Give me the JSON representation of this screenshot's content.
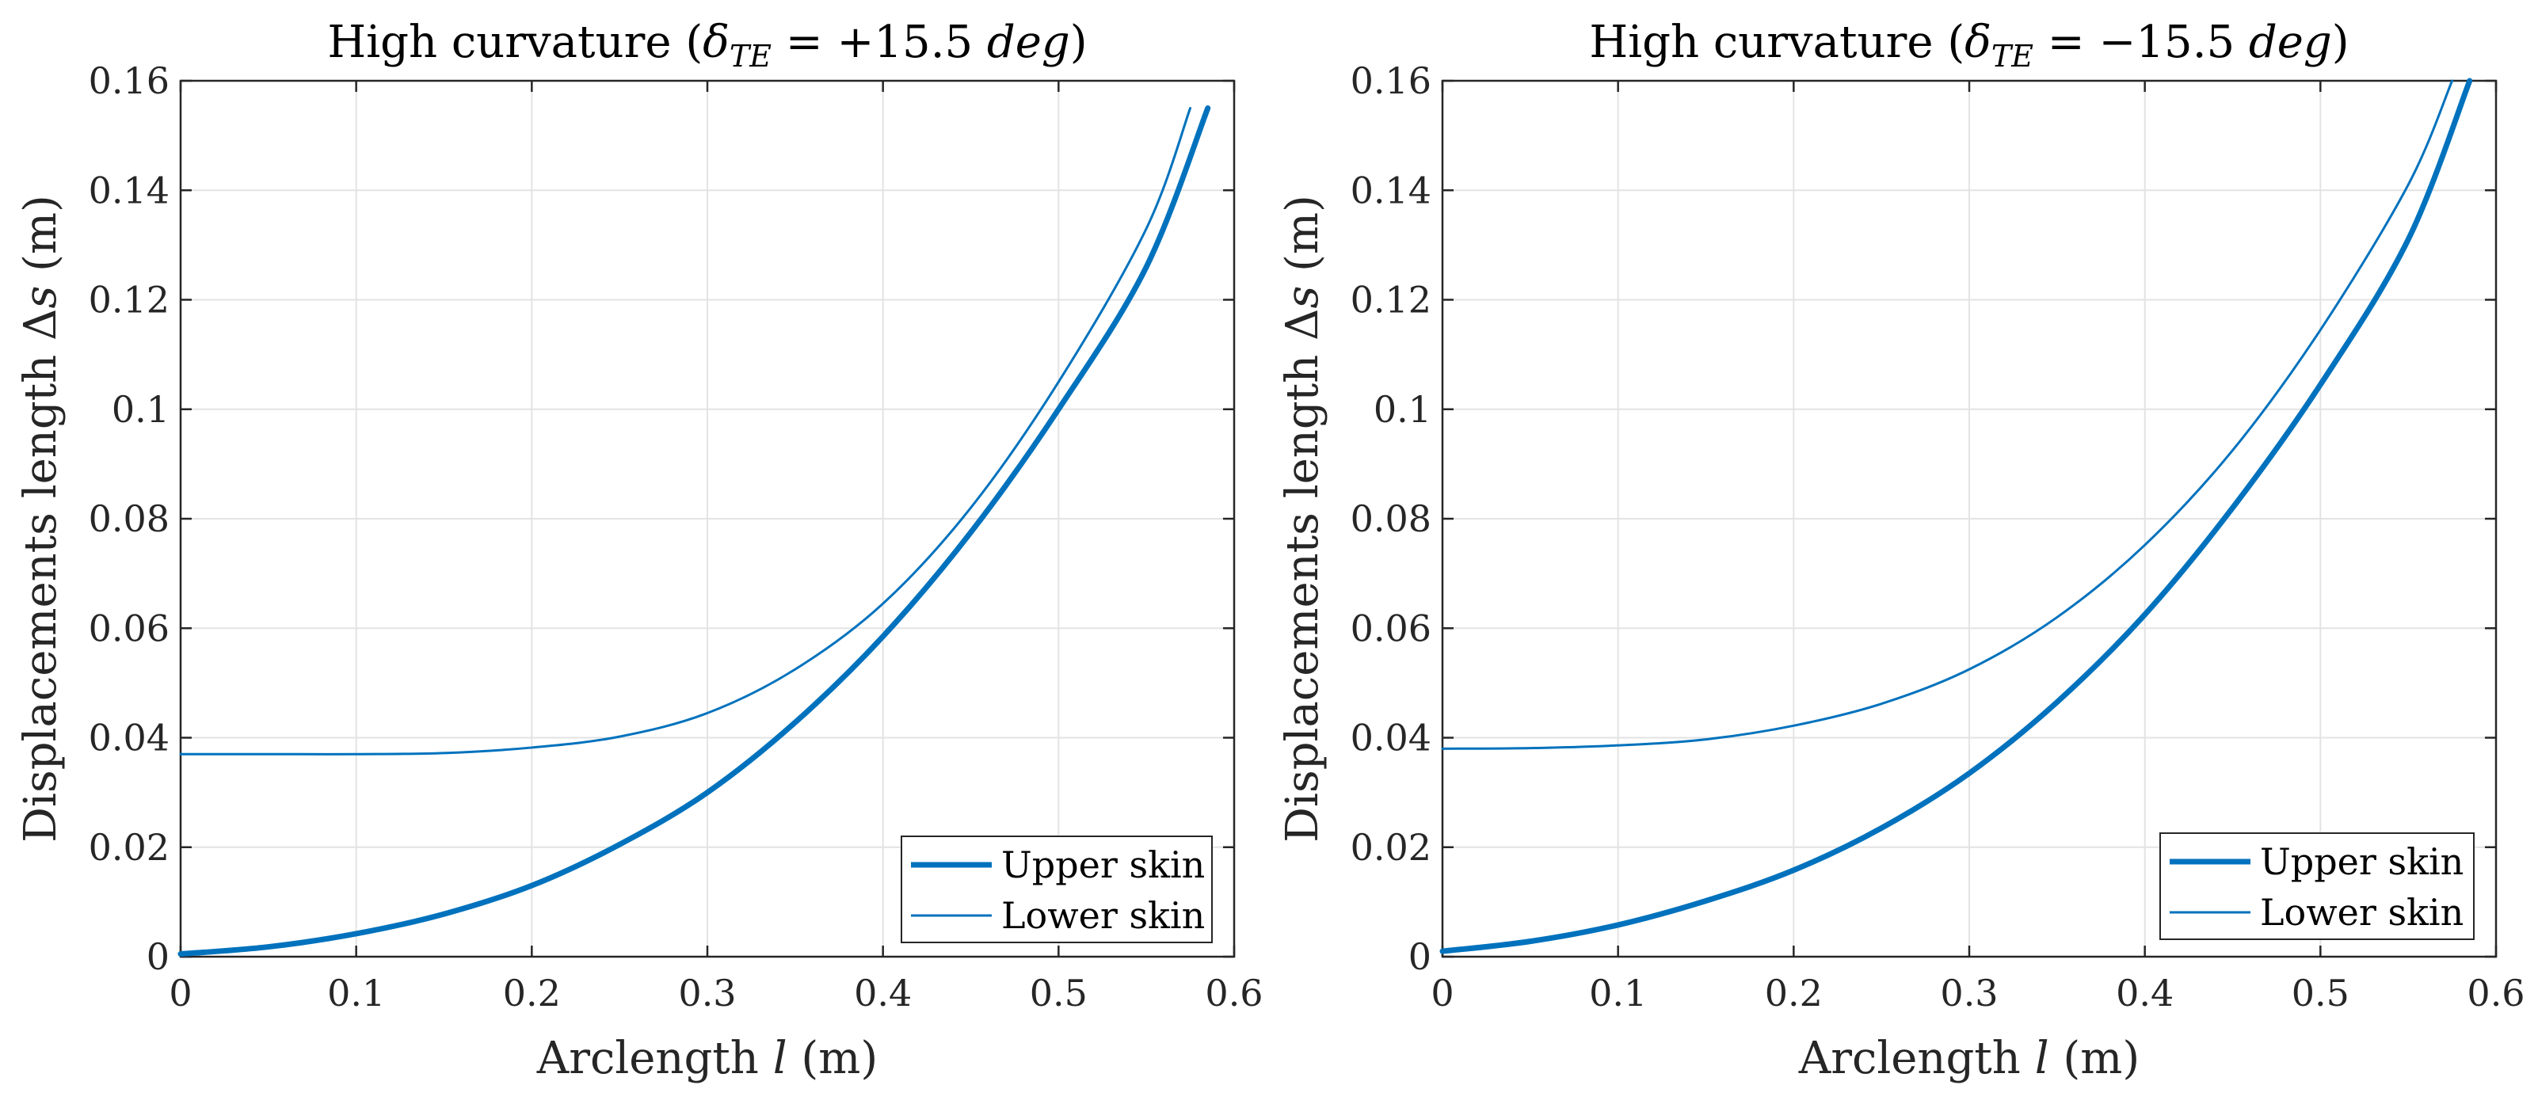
{
  "chart_data": [
    {
      "type": "line",
      "title": "High curvature (δ_TE = +15.5 deg)",
      "title_parts": {
        "prefix": "High curvature (",
        "symbol": "δ",
        "subscript": "TE",
        "equation": " = +15.5 ",
        "unit": "deg",
        "suffix": ")"
      },
      "xlabel": "Arclength l (m)",
      "xlabel_parts": {
        "prefix": "Arclength ",
        "var": "l",
        "suffix": " (m)"
      },
      "ylabel": "Displacements length Δs (m)",
      "ylabel_parts": {
        "prefix": "Displacements length Δ",
        "var": "s",
        "suffix": " (m)"
      },
      "xlim": [
        0,
        0.6
      ],
      "ylim": [
        0,
        0.16
      ],
      "xticks": [
        0,
        0.1,
        0.2,
        0.3,
        0.4,
        0.5,
        0.6
      ],
      "yticks": [
        0,
        0.02,
        0.04,
        0.06,
        0.08,
        0.1,
        0.12,
        0.14,
        0.16
      ],
      "xtick_labels": [
        "0",
        "0.1",
        "0.2",
        "0.3",
        "0.4",
        "0.5",
        "0.6"
      ],
      "ytick_labels": [
        "0",
        "0.02",
        "0.04",
        "0.06",
        "0.08",
        "0.1",
        "0.12",
        "0.14",
        "0.16"
      ],
      "grid": true,
      "legend_position": "bottom-right",
      "series": [
        {
          "name": "Upper skin",
          "color": "#0072bd",
          "line_weight": "thick",
          "x": [
            0,
            0.05,
            0.1,
            0.15,
            0.2,
            0.25,
            0.3,
            0.35,
            0.4,
            0.45,
            0.5,
            0.55,
            0.585
          ],
          "y": [
            0.0005,
            0.0018,
            0.0042,
            0.0078,
            0.013,
            0.0205,
            0.03,
            0.0428,
            0.0585,
            0.0775,
            0.1,
            0.126,
            0.155
          ]
        },
        {
          "name": "Lower skin",
          "color": "#0072bd",
          "line_weight": "thin",
          "x": [
            0,
            0.05,
            0.1,
            0.15,
            0.2,
            0.25,
            0.3,
            0.35,
            0.4,
            0.45,
            0.5,
            0.55,
            0.575
          ],
          "y": [
            0.037,
            0.037,
            0.037,
            0.0372,
            0.0382,
            0.0402,
            0.0445,
            0.0525,
            0.0645,
            0.082,
            0.105,
            0.133,
            0.155
          ]
        }
      ]
    },
    {
      "type": "line",
      "title": "High curvature (δ_TE = −15.5 deg)",
      "title_parts": {
        "prefix": "High curvature (",
        "symbol": "δ",
        "subscript": "TE",
        "equation": " = −15.5 ",
        "unit": "deg",
        "suffix": ")"
      },
      "xlabel": "Arclength l (m)",
      "xlabel_parts": {
        "prefix": "Arclength ",
        "var": "l",
        "suffix": " (m)"
      },
      "ylabel": "Displacements length Δs (m)",
      "ylabel_parts": {
        "prefix": "Displacements length Δ",
        "var": "s",
        "suffix": " (m)"
      },
      "xlim": [
        0,
        0.6
      ],
      "ylim": [
        0,
        0.16
      ],
      "xticks": [
        0,
        0.1,
        0.2,
        0.3,
        0.4,
        0.5,
        0.6
      ],
      "yticks": [
        0,
        0.02,
        0.04,
        0.06,
        0.08,
        0.1,
        0.12,
        0.14,
        0.16
      ],
      "xtick_labels": [
        "0",
        "0.1",
        "0.2",
        "0.3",
        "0.4",
        "0.5",
        "0.6"
      ],
      "ytick_labels": [
        "0",
        "0.02",
        "0.04",
        "0.06",
        "0.08",
        "0.1",
        "0.12",
        "0.14",
        "0.16"
      ],
      "grid": true,
      "legend_position": "bottom-right",
      "series": [
        {
          "name": "Upper skin",
          "color": "#0072bd",
          "line_weight": "thick",
          "x": [
            0,
            0.05,
            0.1,
            0.15,
            0.2,
            0.25,
            0.3,
            0.35,
            0.4,
            0.45,
            0.5,
            0.55,
            0.585
          ],
          "y": [
            0.001,
            0.0028,
            0.0058,
            0.0102,
            0.0158,
            0.0235,
            0.0335,
            0.0465,
            0.0625,
            0.082,
            0.1045,
            0.131,
            0.16
          ]
        },
        {
          "name": "Lower skin",
          "color": "#0072bd",
          "line_weight": "thin",
          "x": [
            0,
            0.05,
            0.1,
            0.15,
            0.2,
            0.25,
            0.3,
            0.35,
            0.4,
            0.45,
            0.5,
            0.55,
            0.575
          ],
          "y": [
            0.038,
            0.0381,
            0.0386,
            0.0397,
            0.0422,
            0.0462,
            0.0525,
            0.062,
            0.0752,
            0.0925,
            0.1145,
            0.141,
            0.16
          ]
        }
      ]
    }
  ]
}
